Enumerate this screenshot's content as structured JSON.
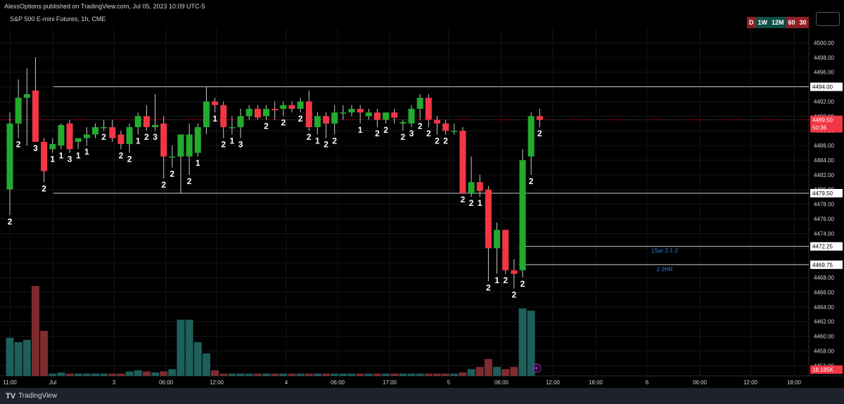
{
  "header": {
    "published_by": "AlexsOptions published on TradingView.com, Jul 05, 2023 10:09 UTC-5"
  },
  "symbol": {
    "title": "S&P 500 E-mini Futures, 1h, CME"
  },
  "timeframes": [
    "D",
    "1W",
    "12M",
    "60",
    "30"
  ],
  "price_axis": {
    "ticks": [
      "4500.00",
      "4498.00",
      "4496.00",
      "4494.00",
      "4492.00",
      "4490.00",
      "4488.00",
      "4486.00",
      "4484.00",
      "4482.00",
      "4480.00",
      "4478.00",
      "4476.00",
      "4474.00",
      "4472.00",
      "4470.00",
      "4468.00",
      "4466.00",
      "4464.00",
      "4462.00",
      "4460.00",
      "4458.00",
      "4456.00"
    ],
    "ymin": 4454.6,
    "ymax": 4502.0
  },
  "time_axis": {
    "labels": [
      "11:00",
      "Jul",
      "3",
      "06:00",
      "12:00",
      "4",
      "06:00",
      "17:00",
      "5",
      "06:00",
      "12:00",
      "18:00",
      "6",
      "06:00",
      "12:00",
      "18:00"
    ]
  },
  "levels": [
    {
      "value": 4494.0,
      "label": "4494.00",
      "note": ""
    },
    {
      "value": 4479.5,
      "label": "4479.50",
      "note": ""
    },
    {
      "value": 4472.25,
      "label": "4472.25",
      "note": "1Ser 2-1-2"
    },
    {
      "value": 4469.75,
      "label": "4469.75",
      "note": "2-2HR"
    }
  ],
  "last_price": {
    "value": 4489.5,
    "label": "4489.50",
    "countdown": "50:36"
  },
  "volume_label": "18.185K",
  "footer": {
    "brand": "TradingView"
  },
  "colors": {
    "up": "#22ab2d",
    "down": "#f23645",
    "vol_up": "#1d5f5a",
    "vol_down": "#7e2c30",
    "level_line": "#c8c8c8",
    "note": "#2f80ed"
  },
  "chart_data": {
    "type": "candlestick",
    "candles": [
      {
        "o": 4480.0,
        "h": 4490.5,
        "l": 4476.5,
        "c": 4489.0,
        "label": "2",
        "vol": 3.4
      },
      {
        "o": 4489.0,
        "h": 4495.0,
        "l": 4487.0,
        "c": 4492.5,
        "label": "2",
        "vol": 3.0
      },
      {
        "o": 4492.5,
        "h": 4496.5,
        "l": 4486.0,
        "c": 4493.0,
        "label": "",
        "vol": 3.2
      },
      {
        "o": 4493.5,
        "h": 4498.0,
        "l": 4486.5,
        "c": 4486.5,
        "label": "3",
        "vol": 8.0
      },
      {
        "o": 4486.5,
        "h": 4487.0,
        "l": 4481.0,
        "c": 4482.5,
        "label": "2",
        "vol": 4.0
      },
      {
        "o": 4485.5,
        "h": 4487.0,
        "l": 4485.0,
        "c": 4486.2,
        "label": "1",
        "vol": 0.2
      },
      {
        "o": 4486.0,
        "h": 4489.0,
        "l": 4485.5,
        "c": 4488.8,
        "label": "1",
        "vol": 0.3
      },
      {
        "o": 4489.0,
        "h": 4489.5,
        "l": 4485.0,
        "c": 4485.5,
        "label": "3",
        "vol": 0.2
      },
      {
        "o": 4486.5,
        "h": 4487.0,
        "l": 4485.5,
        "c": 4487.0,
        "label": "1",
        "vol": 0.2
      },
      {
        "o": 4487.0,
        "h": 4488.5,
        "l": 4486.0,
        "c": 4487.5,
        "label": "1",
        "vol": 0.2
      },
      {
        "o": 4487.5,
        "h": 4489.0,
        "l": 4487.0,
        "c": 4488.5,
        "label": "",
        "vol": 0.2
      },
      {
        "o": 4488.5,
        "h": 4489.5,
        "l": 4488.0,
        "c": 4488.5,
        "label": "2",
        "vol": 0.2
      },
      {
        "o": 4488.5,
        "h": 4489.5,
        "l": 4486.5,
        "c": 4487.0,
        "label": "",
        "vol": 0.2
      },
      {
        "o": 4487.5,
        "h": 4488.0,
        "l": 4485.5,
        "c": 4486.2,
        "label": "2",
        "vol": 0.2
      },
      {
        "o": 4486.2,
        "h": 4489.0,
        "l": 4485.0,
        "c": 4488.5,
        "label": "2",
        "vol": 0.4
      },
      {
        "o": 4488.5,
        "h": 4490.5,
        "l": 4487.5,
        "c": 4490.0,
        "label": "1",
        "vol": 0.5
      },
      {
        "o": 4490.0,
        "h": 4491.5,
        "l": 4488.0,
        "c": 4488.5,
        "label": "2",
        "vol": 0.4
      },
      {
        "o": 4488.5,
        "h": 4493.0,
        "l": 4488.0,
        "c": 4488.8,
        "label": "3",
        "vol": 0.3
      },
      {
        "o": 4489.0,
        "h": 4490.0,
        "l": 4481.5,
        "c": 4484.5,
        "label": "2",
        "vol": 0.4
      },
      {
        "o": 4484.5,
        "h": 4486.0,
        "l": 4483.0,
        "c": 4484.5,
        "label": "2",
        "vol": 0.6
      },
      {
        "o": 4484.5,
        "h": 4487.5,
        "l": 4479.5,
        "c": 4487.5,
        "label": "",
        "vol": 5.0
      },
      {
        "o": 4484.5,
        "h": 4489.0,
        "l": 4482.0,
        "c": 4487.5,
        "label": "2",
        "vol": 5.0
      },
      {
        "o": 4485.0,
        "h": 4489.0,
        "l": 4484.5,
        "c": 4488.5,
        "label": "1",
        "vol": 3.0
      },
      {
        "o": 4488.5,
        "h": 4494.0,
        "l": 4487.5,
        "c": 4492.0,
        "label": "",
        "vol": 2.0
      },
      {
        "o": 4492.0,
        "h": 4492.5,
        "l": 4490.5,
        "c": 4491.5,
        "label": "1",
        "vol": 0.5
      },
      {
        "o": 4491.5,
        "h": 4492.0,
        "l": 4487.0,
        "c": 4488.5,
        "label": "2",
        "vol": 0.2
      },
      {
        "o": 4488.5,
        "h": 4490.0,
        "l": 4487.5,
        "c": 4488.5,
        "label": "1",
        "vol": 0.2
      },
      {
        "o": 4488.5,
        "h": 4491.0,
        "l": 4487.0,
        "c": 4490.0,
        "label": "3",
        "vol": 0.2
      },
      {
        "o": 4490.0,
        "h": 4491.5,
        "l": 4489.5,
        "c": 4491.0,
        "label": "",
        "vol": 0.2
      },
      {
        "o": 4491.0,
        "h": 4491.5,
        "l": 4489.5,
        "c": 4489.8,
        "label": "",
        "vol": 0.2
      },
      {
        "o": 4490.0,
        "h": 4491.5,
        "l": 4489.5,
        "c": 4491.0,
        "label": "2",
        "vol": 0.2
      },
      {
        "o": 4491.0,
        "h": 4492.0,
        "l": 4489.5,
        "c": 4490.8,
        "label": "",
        "vol": 0.2
      },
      {
        "o": 4491.0,
        "h": 4492.0,
        "l": 4490.0,
        "c": 4491.5,
        "label": "2",
        "vol": 0.2
      },
      {
        "o": 4491.5,
        "h": 4492.0,
        "l": 4490.5,
        "c": 4491.0,
        "label": "",
        "vol": 0.2
      },
      {
        "o": 4491.0,
        "h": 4492.5,
        "l": 4490.5,
        "c": 4492.0,
        "label": "2",
        "vol": 0.2
      },
      {
        "o": 4492.0,
        "h": 4493.5,
        "l": 4488.0,
        "c": 4488.5,
        "label": "2",
        "vol": 0.2
      },
      {
        "o": 4488.5,
        "h": 4490.5,
        "l": 4487.5,
        "c": 4490.0,
        "label": "1",
        "vol": 0.2
      },
      {
        "o": 4490.0,
        "h": 4490.5,
        "l": 4487.0,
        "c": 4489.0,
        "label": "2",
        "vol": 0.2
      },
      {
        "o": 4489.0,
        "h": 4491.5,
        "l": 4487.5,
        "c": 4490.5,
        "label": "2",
        "vol": 0.2
      },
      {
        "o": 4490.5,
        "h": 4491.5,
        "l": 4489.5,
        "c": 4490.5,
        "label": "",
        "vol": 0.2
      },
      {
        "o": 4490.5,
        "h": 4491.5,
        "l": 4490.0,
        "c": 4491.0,
        "label": "",
        "vol": 0.2
      },
      {
        "o": 4491.0,
        "h": 4491.5,
        "l": 4489.0,
        "c": 4490.5,
        "label": "1",
        "vol": 0.2
      },
      {
        "o": 4490.0,
        "h": 4491.0,
        "l": 4489.5,
        "c": 4490.5,
        "label": "",
        "vol": 0.2
      },
      {
        "o": 4490.5,
        "h": 4491.0,
        "l": 4488.5,
        "c": 4489.5,
        "label": "2",
        "vol": 0.2
      },
      {
        "o": 4489.5,
        "h": 4490.5,
        "l": 4489.0,
        "c": 4490.5,
        "label": "2",
        "vol": 0.2
      },
      {
        "o": 4490.5,
        "h": 4491.0,
        "l": 4489.0,
        "c": 4489.8,
        "label": "",
        "vol": 0.2
      },
      {
        "o": 4489.0,
        "h": 4489.5,
        "l": 4488.0,
        "c": 4489.2,
        "label": "2",
        "vol": 0.2
      },
      {
        "o": 4489.0,
        "h": 4491.5,
        "l": 4488.5,
        "c": 4491.0,
        "label": "3",
        "vol": 0.2
      },
      {
        "o": 4491.0,
        "h": 4493.0,
        "l": 4489.5,
        "c": 4492.5,
        "label": "2",
        "vol": 0.2
      },
      {
        "o": 4492.5,
        "h": 4493.0,
        "l": 4488.5,
        "c": 4489.5,
        "label": "2",
        "vol": 0.2
      },
      {
        "o": 4489.5,
        "h": 4490.0,
        "l": 4487.5,
        "c": 4489.0,
        "label": "2",
        "vol": 0.2
      },
      {
        "o": 4489.0,
        "h": 4489.5,
        "l": 4487.5,
        "c": 4488.0,
        "label": "2",
        "vol": 0.2
      },
      {
        "o": 4488.0,
        "h": 4489.0,
        "l": 4487.5,
        "c": 4488.0,
        "label": "",
        "vol": 0.2
      },
      {
        "o": 4488.0,
        "h": 4488.5,
        "l": 4479.5,
        "c": 4479.5,
        "label": "2",
        "vol": 0.3
      },
      {
        "o": 4479.5,
        "h": 4484.5,
        "l": 4479.0,
        "c": 4481.0,
        "label": "2",
        "vol": 0.6
      },
      {
        "o": 4481.0,
        "h": 4482.0,
        "l": 4479.0,
        "c": 4479.8,
        "label": "1",
        "vol": 0.8
      },
      {
        "o": 4480.0,
        "h": 4480.5,
        "l": 4467.5,
        "c": 4472.0,
        "label": "2",
        "vol": 1.5
      },
      {
        "o": 4472.0,
        "h": 4475.5,
        "l": 4468.5,
        "c": 4474.5,
        "label": "1",
        "vol": 0.8
      },
      {
        "o": 4474.5,
        "h": 4474.5,
        "l": 4468.5,
        "c": 4469.0,
        "label": "2",
        "vol": 0.6
      },
      {
        "o": 4469.0,
        "h": 4470.5,
        "l": 4466.5,
        "c": 4468.5,
        "label": "2",
        "vol": 0.8
      },
      {
        "o": 4469.0,
        "h": 4485.5,
        "l": 4468.0,
        "c": 4484.0,
        "label": "2",
        "vol": 6.0
      },
      {
        "o": 4484.5,
        "h": 4490.5,
        "l": 4482.0,
        "c": 4490.0,
        "label": "2",
        "vol": 5.8
      },
      {
        "o": 4490.0,
        "h": 4491.0,
        "l": 4488.5,
        "c": 4489.5,
        "label": "2",
        "vol": 0.0
      }
    ]
  }
}
